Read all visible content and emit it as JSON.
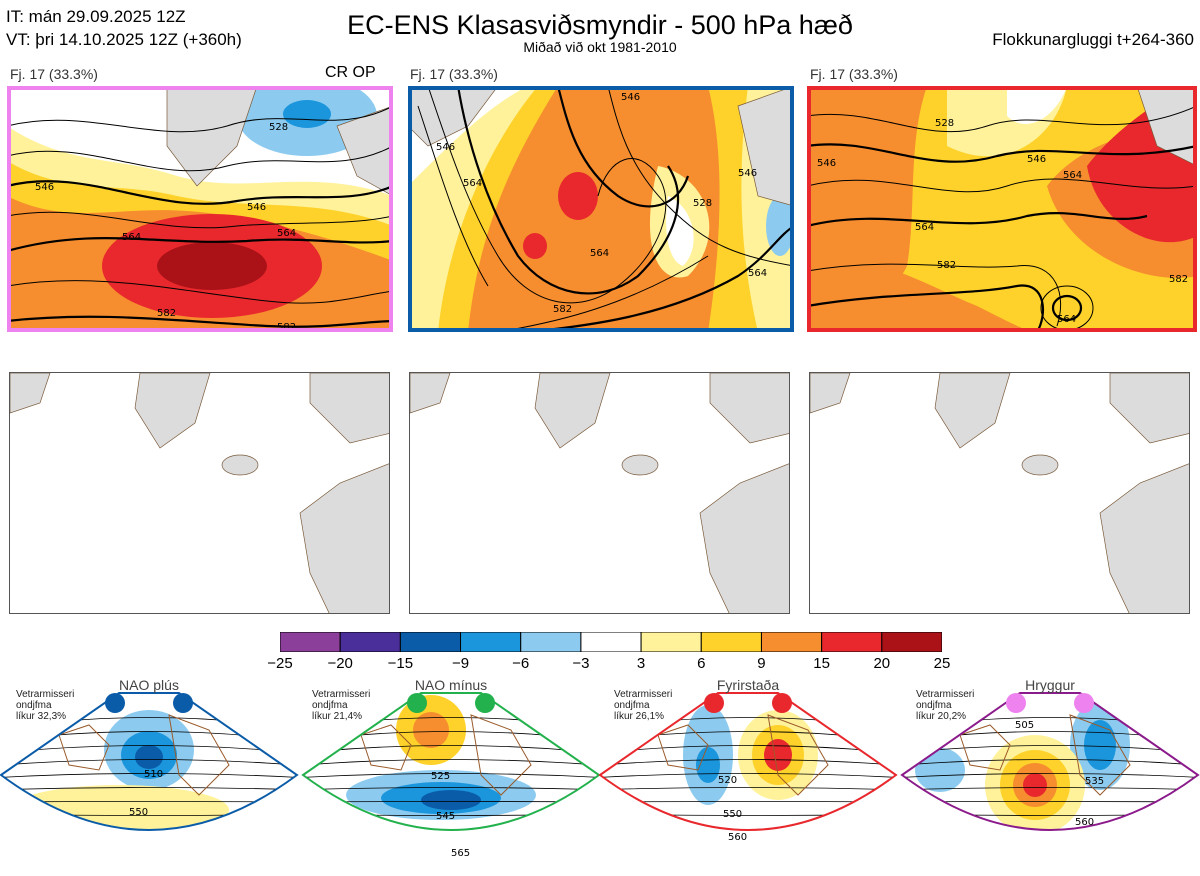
{
  "header": {
    "init_time": "IT: mán 29.09.2025 12Z",
    "valid_time": "VT: þri 14.10.2025 12Z  (+360h)",
    "title": "EC-ENS Klasasviðsmyndir - 500 hPa hæð",
    "subtitle": "Miðað við okt 1981-2010",
    "window": "Flokkunargluggi t+264-360"
  },
  "colors": {
    "land": "#dcdcdc",
    "coast": "#7a5a3a",
    "panel_borders": [
      "#ee82ee",
      "#0b5ca8",
      "#e8282c"
    ]
  },
  "panels": [
    {
      "label": "Fj. 17 (33.3%)",
      "tag": "CR OP",
      "contour_labels": [
        "528",
        "546",
        "546",
        "564",
        "564",
        "582",
        "582"
      ]
    },
    {
      "label": "Fj. 17 (33.3%)",
      "tag": "",
      "contour_labels": [
        "546",
        "564",
        "546",
        "528",
        "546",
        "564",
        "564",
        "582"
      ]
    },
    {
      "label": "Fj. 17 (33.3%)",
      "tag": "",
      "contour_labels": [
        "528",
        "546",
        "546",
        "564",
        "564",
        "582",
        "582",
        "564"
      ]
    }
  ],
  "colorbar": {
    "ticks": [
      "−25",
      "−20",
      "−15",
      "−9",
      "−6",
      "−3",
      "3",
      "6",
      "9",
      "15",
      "20",
      "25"
    ],
    "colors": [
      "#8b3f9a",
      "#4a2e9a",
      "#0b5ca8",
      "#1b96dc",
      "#8ccbef",
      "#ffffff",
      "#fff29a",
      "#fed22b",
      "#f68d2e",
      "#e8282c",
      "#aa1218"
    ]
  },
  "regimes": [
    {
      "name": "NAO plús",
      "note": "Vetrarmisseri\nondjfma\nlíkur 32,3%",
      "dot_color": "#0b5ca8",
      "border_color": "#0b5ca8",
      "contour_labels": [
        "510",
        "550"
      ]
    },
    {
      "name": "NAO mínus",
      "note": "Vetrarmisseri\nondjfma\nlíkur 21,4%",
      "dot_color": "#22b14c",
      "border_color": "#22b14c",
      "contour_labels": [
        "525",
        "545",
        "565"
      ]
    },
    {
      "name": "Fyrirstaða",
      "note": "Vetrarmisseri\nondjfma\nlíkur 26,1%",
      "dot_color": "#e8282c",
      "border_color": "#e8282c",
      "contour_labels": [
        "520",
        "550",
        "560"
      ]
    },
    {
      "name": "Hryggur",
      "note": "Vetrarmisseri\nondjfma\nlíkur 20,2%",
      "dot_color": "#ee82ee",
      "border_color": "#8b1a8b",
      "contour_labels": [
        "505",
        "535",
        "560"
      ]
    }
  ]
}
